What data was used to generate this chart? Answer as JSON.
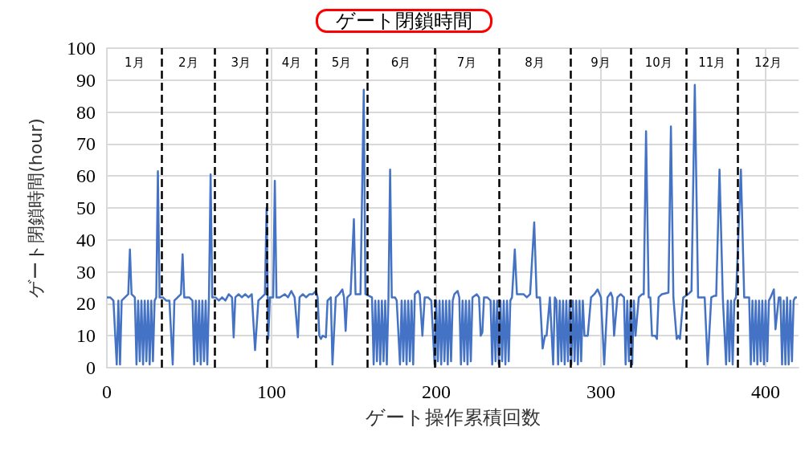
{
  "chart_data": {
    "type": "line",
    "title": "ゲート閉鎖時間",
    "xlabel": "ゲート操作累積回数",
    "ylabel": "ゲート閉鎖時間(hour)",
    "x": [
      0,
      2,
      4,
      6,
      7,
      8,
      9,
      11,
      13,
      14,
      15,
      17,
      18,
      19,
      20,
      21,
      22,
      23,
      24,
      25,
      26,
      27,
      28,
      29,
      30,
      31,
      32,
      34,
      36,
      38,
      40,
      41,
      43,
      45,
      46,
      47,
      50,
      52,
      53,
      54,
      55,
      56,
      57,
      58,
      59,
      60,
      61,
      62,
      63,
      64,
      66,
      68,
      70,
      72,
      74,
      76,
      77,
      78,
      80,
      82,
      84,
      86,
      88,
      90,
      92,
      94,
      96,
      97,
      98,
      99,
      101,
      102,
      103,
      105,
      108,
      110,
      112,
      114,
      116,
      117,
      119,
      121,
      123,
      125,
      127,
      128,
      129,
      130,
      131,
      133,
      134,
      136,
      137,
      139,
      141,
      143,
      144,
      145,
      146,
      148,
      150,
      151,
      153,
      154,
      156,
      157,
      159,
      161,
      162,
      163,
      164,
      165,
      166,
      167,
      168,
      169,
      170,
      171,
      172,
      173,
      175,
      176,
      178,
      179,
      180,
      181,
      182,
      183,
      184,
      185,
      186,
      187,
      189,
      190,
      191.6,
      193,
      195,
      197,
      199,
      200,
      201,
      202,
      203,
      204,
      205,
      206,
      207,
      208,
      209,
      210,
      211,
      213,
      214,
      215,
      216,
      217,
      218,
      219,
      220,
      221,
      222,
      224.6,
      226,
      227,
      228,
      229,
      231,
      233,
      234,
      235,
      236,
      237,
      238,
      239,
      240,
      241,
      242,
      243,
      244,
      245,
      246,
      247.7,
      249,
      251,
      253,
      255,
      257,
      259.5,
      261,
      263,
      264.6,
      266,
      267,
      269,
      271,
      272,
      273,
      274,
      275,
      276,
      277,
      278,
      279,
      280,
      281,
      282,
      283,
      284,
      285,
      286,
      287,
      288,
      289,
      290,
      292,
      294,
      296,
      298,
      300,
      302,
      304,
      306,
      307,
      308,
      310,
      312,
      314,
      315,
      316,
      317,
      318,
      319,
      320,
      321,
      323,
      325,
      326,
      327.4,
      329,
      330,
      331,
      333,
      334,
      335,
      337,
      341,
      342.5,
      344,
      346,
      347,
      348,
      350,
      353,
      355,
      357,
      359,
      361,
      363,
      364.8,
      367,
      369,
      370,
      372,
      374,
      376,
      377,
      378,
      379,
      380,
      381,
      382,
      385,
      387,
      390,
      391,
      392,
      393,
      394,
      395,
      396,
      397,
      398,
      399,
      400,
      401,
      402,
      403,
      405,
      406,
      408,
      409,
      410,
      411,
      412,
      413,
      414,
      415,
      416,
      417,
      418,
      419
    ],
    "series": [
      {
        "color": "#4472c4",
        "values": [
          22,
          22,
          21,
          1,
          21,
          1,
          21,
          22,
          23,
          37,
          23,
          22,
          1,
          21,
          2,
          21,
          1,
          21,
          2,
          21,
          1,
          21,
          2,
          21,
          22,
          61.5,
          22,
          22,
          21,
          21,
          1,
          21,
          22,
          23,
          35.5,
          22,
          22,
          21,
          1,
          21,
          2,
          21,
          1,
          21,
          2,
          21,
          1,
          22,
          60.5,
          22,
          22,
          21,
          22,
          21,
          23,
          22,
          9.5,
          22,
          23,
          22,
          23,
          22,
          23,
          5.5,
          21,
          22,
          23,
          50,
          9,
          22,
          22,
          58.5,
          22,
          22,
          23,
          22,
          24,
          22,
          9.5,
          22,
          23,
          22,
          23,
          23,
          24,
          22,
          10,
          9,
          10,
          9.5,
          21,
          22,
          1,
          22,
          23,
          24.5,
          22,
          11.5,
          22,
          23,
          46.5,
          23,
          23,
          23,
          87,
          23,
          22.5,
          22,
          1,
          21,
          2,
          21,
          1,
          21,
          2,
          21,
          1,
          22,
          62,
          22,
          22,
          21,
          1,
          21,
          2,
          21,
          1,
          21,
          2,
          21,
          1,
          23,
          24,
          23,
          10,
          22,
          22,
          21,
          1,
          21,
          2,
          21,
          1,
          21,
          2,
          21,
          1,
          21,
          2,
          21,
          23,
          24,
          22,
          1,
          21,
          2,
          21,
          1,
          21,
          2,
          22,
          23,
          22,
          10,
          11,
          22,
          22,
          21,
          1,
          21,
          2,
          21,
          1,
          21,
          2,
          21,
          1,
          21,
          2,
          21,
          22,
          37,
          23,
          23,
          23,
          22,
          23,
          45.5,
          22,
          22,
          6,
          10,
          10,
          22,
          1,
          22,
          21,
          1,
          21,
          2,
          21,
          1,
          21,
          2,
          21,
          1,
          21,
          2,
          21,
          1,
          21,
          2,
          21,
          10,
          10,
          22,
          23,
          24.5,
          22,
          1,
          22,
          23.5,
          22,
          10,
          22,
          23,
          22,
          1,
          21,
          2,
          21,
          1,
          21,
          10,
          22,
          23,
          23,
          74,
          22,
          22,
          10,
          10,
          9,
          22,
          23,
          23.5,
          75.5,
          22,
          9,
          10,
          9,
          22,
          23,
          24,
          88.5,
          22,
          22,
          22,
          1,
          22,
          22.5,
          22.5,
          62,
          22,
          1,
          21,
          2,
          21,
          1,
          21,
          22,
          62,
          22,
          22,
          1,
          21,
          2,
          21,
          1,
          21,
          2,
          21,
          1,
          21,
          2,
          21,
          22,
          24.5,
          12,
          22,
          22,
          1,
          21,
          1,
          22,
          1,
          21,
          2,
          21,
          22,
          22
        ]
      }
    ],
    "xlim": [
      0,
      420
    ],
    "xticks": [
      0,
      100,
      200,
      300,
      400
    ],
    "ylim": [
      0,
      100
    ],
    "yticks": [
      0,
      10,
      20,
      30,
      40,
      50,
      60,
      70,
      80,
      90,
      100
    ],
    "grid": true,
    "marker": "none",
    "line_style": "solid",
    "ref_lines": [
      {
        "axis": "x",
        "value": 33.4,
        "color": "#000000",
        "line_style": "dashed"
      },
      {
        "axis": "x",
        "value": 65.4,
        "color": "#000000",
        "line_style": "dashed"
      },
      {
        "axis": "x",
        "value": 97.4,
        "color": "#000000",
        "line_style": "dashed"
      },
      {
        "axis": "x",
        "value": 127,
        "color": "#000000",
        "line_style": "dashed"
      },
      {
        "axis": "x",
        "value": 158,
        "color": "#000000",
        "line_style": "dashed"
      },
      {
        "axis": "x",
        "value": 199,
        "color": "#000000",
        "line_style": "dashed"
      },
      {
        "axis": "x",
        "value": 238,
        "color": "#000000",
        "line_style": "dashed"
      },
      {
        "axis": "x",
        "value": 281.6,
        "color": "#000000",
        "line_style": "dashed"
      },
      {
        "axis": "x",
        "value": 318,
        "color": "#000000",
        "line_style": "dashed"
      },
      {
        "axis": "x",
        "value": 352,
        "color": "#000000",
        "line_style": "dashed"
      },
      {
        "axis": "x",
        "value": 383,
        "color": "#000000",
        "line_style": "dashed"
      }
    ],
    "annotations": [
      "1月",
      "2月",
      "3月",
      "4月",
      "5月",
      "6月",
      "7月",
      "8月",
      "9月",
      "10月",
      "11月",
      "12月"
    ]
  }
}
